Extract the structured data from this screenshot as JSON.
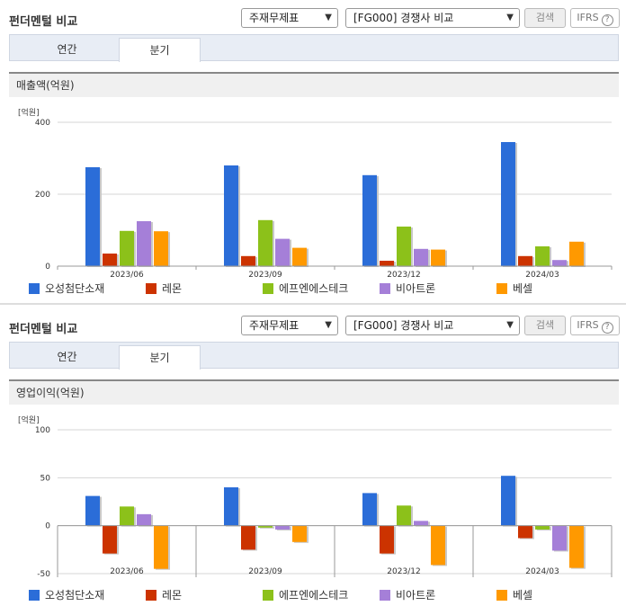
{
  "panels": [
    {
      "title": "펀더멘털 비교",
      "select1": "주재무제표",
      "select2": "[FG000] 경쟁사 비교",
      "search_label": "검색",
      "ifrs_label": "IFRS",
      "tabs": [
        "연간",
        "분기"
      ],
      "chart_title": "매출액(억원)",
      "unit": "[억원]"
    },
    {
      "title": "펀더멘털 비교",
      "select1": "주재무제표",
      "select2": "[FG000] 경쟁사 비교",
      "search_label": "검색",
      "ifrs_label": "IFRS",
      "tabs": [
        "연간",
        "분기"
      ],
      "chart_title": "영업이익(억원)",
      "unit": "[억원]"
    }
  ],
  "colors": {
    "series": [
      "#2b6dd8",
      "#cc3300",
      "#8cc11a",
      "#a57fd8",
      "#ff9900"
    ],
    "grid": "#d6d6d6",
    "axis": "#999999"
  },
  "chart_data": [
    {
      "type": "bar",
      "categories": [
        "2023/06",
        "2023/09",
        "2023/12",
        "2024/03"
      ],
      "ylim": [
        0,
        400
      ],
      "yticks": [
        0,
        200,
        400
      ],
      "series": [
        {
          "name": "오성첨단소재",
          "values": [
            275,
            280,
            253,
            345
          ]
        },
        {
          "name": "레몬",
          "values": [
            35,
            28,
            15,
            28
          ]
        },
        {
          "name": "에프엔에스테크",
          "values": [
            98,
            128,
            110,
            55
          ]
        },
        {
          "name": "비아트론",
          "values": [
            125,
            76,
            48,
            17
          ]
        },
        {
          "name": "베셀",
          "values": [
            97,
            51,
            46,
            68
          ]
        }
      ]
    },
    {
      "type": "bar",
      "categories": [
        "2023/06",
        "2023/09",
        "2023/12",
        "2024/03"
      ],
      "ylim": [
        -50,
        100
      ],
      "yticks": [
        -50,
        0,
        50,
        100
      ],
      "series": [
        {
          "name": "오성첨단소재",
          "values": [
            31,
            40,
            34,
            52
          ]
        },
        {
          "name": "레몬",
          "values": [
            -29,
            -25,
            -29,
            -13
          ]
        },
        {
          "name": "에프엔에스테크",
          "values": [
            20,
            -2,
            21,
            -4
          ]
        },
        {
          "name": "비아트론",
          "values": [
            12,
            -4,
            5,
            -26
          ]
        },
        {
          "name": "베셀",
          "values": [
            -45,
            -17,
            -41,
            -44
          ]
        }
      ]
    }
  ]
}
